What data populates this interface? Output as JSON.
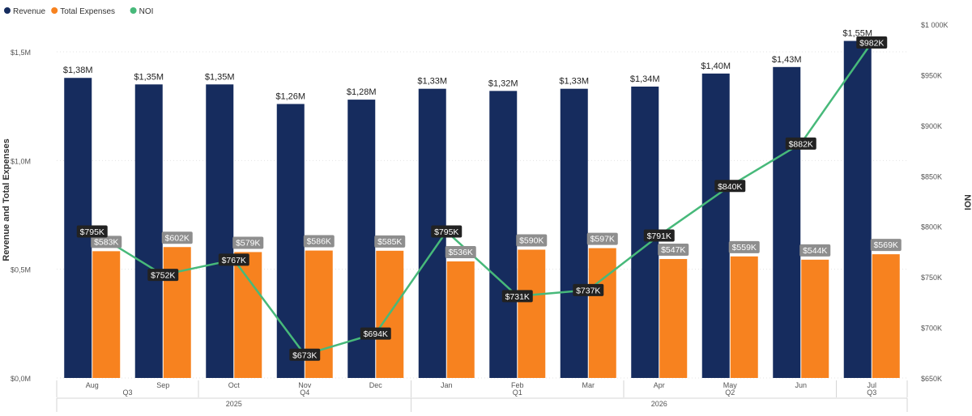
{
  "colors": {
    "revenue": "#162C5E",
    "expenses": "#F7821F",
    "noi": "#47B97A",
    "label_dark_bg": "#222222",
    "label_gray_bg": "#8E8E8E",
    "grid": "#E3E3E3",
    "axis_text": "#555555"
  },
  "chart_data": {
    "type": "bar",
    "categories": [
      "Aug",
      "Sep",
      "Oct",
      "Nov",
      "Dec",
      "Jan",
      "Feb",
      "Mar",
      "Apr",
      "May",
      "Jun",
      "Jul"
    ],
    "quarter_groups": [
      {
        "label": "Q3",
        "start": 0,
        "end": 1
      },
      {
        "label": "Q4",
        "start": 2,
        "end": 4
      },
      {
        "label": "Q1",
        "start": 5,
        "end": 7
      },
      {
        "label": "Q2",
        "start": 8,
        "end": 10
      },
      {
        "label": "Q3",
        "start": 11,
        "end": 11
      }
    ],
    "year_groups": [
      {
        "label": "2025",
        "start": 0,
        "end": 4
      },
      {
        "label": "2026",
        "start": 5,
        "end": 11
      }
    ],
    "series": [
      {
        "name": "Revenue",
        "kind": "bar",
        "axis": "left",
        "values": [
          1.38,
          1.35,
          1.35,
          1.26,
          1.28,
          1.33,
          1.32,
          1.33,
          1.34,
          1.4,
          1.43,
          1.55
        ],
        "data_labels": [
          "$1,38M",
          "$1,35M",
          "$1,35M",
          "$1,26M",
          "$1,28M",
          "$1,33M",
          "$1,32M",
          "$1,33M",
          "$1,34M",
          "$1,40M",
          "$1,43M",
          "$1,55M"
        ]
      },
      {
        "name": "Total Expenses",
        "kind": "bar",
        "axis": "left",
        "values": [
          0.583,
          0.602,
          0.579,
          0.586,
          0.585,
          0.536,
          0.59,
          0.597,
          0.547,
          0.559,
          0.544,
          0.569
        ],
        "data_labels": [
          "$583K",
          "$602K",
          "$579K",
          "$586K",
          "$585K",
          "$536K",
          "$590K",
          "$597K",
          "$547K",
          "$559K",
          "$544K",
          "$569K"
        ]
      },
      {
        "name": "NOI",
        "kind": "line",
        "axis": "right",
        "values": [
          795,
          752,
          767,
          673,
          694,
          795,
          731,
          737,
          791,
          840,
          882,
          982
        ],
        "data_labels": [
          "$795K",
          "$752K",
          "$767K",
          "$673K",
          "$694K",
          "$795K",
          "$731K",
          "$737K",
          "$791K",
          "$840K",
          "$882K",
          "$982K"
        ]
      }
    ],
    "ylabel": "Revenue and Total Expenses",
    "y2label": "NOI",
    "ylim": [
      0,
      1.5
    ],
    "y_ticks": [
      0,
      0.5,
      1.0,
      1.5
    ],
    "y_tick_labels": [
      "$0,0M",
      "$0,5M",
      "$1,0M",
      "$1,5M"
    ],
    "y2lim": [
      650,
      1000
    ],
    "y2_ticks": [
      650,
      700,
      750,
      800,
      850,
      900,
      950,
      1000
    ],
    "y2_tick_labels": [
      "$650K",
      "$700K",
      "$750K",
      "$800K",
      "$850K",
      "$900K",
      "$950K",
      "$1 000K"
    ],
    "legend": [
      "Revenue",
      "Total Expenses",
      "NOI"
    ],
    "legend_position": "top-left",
    "grid": true
  }
}
